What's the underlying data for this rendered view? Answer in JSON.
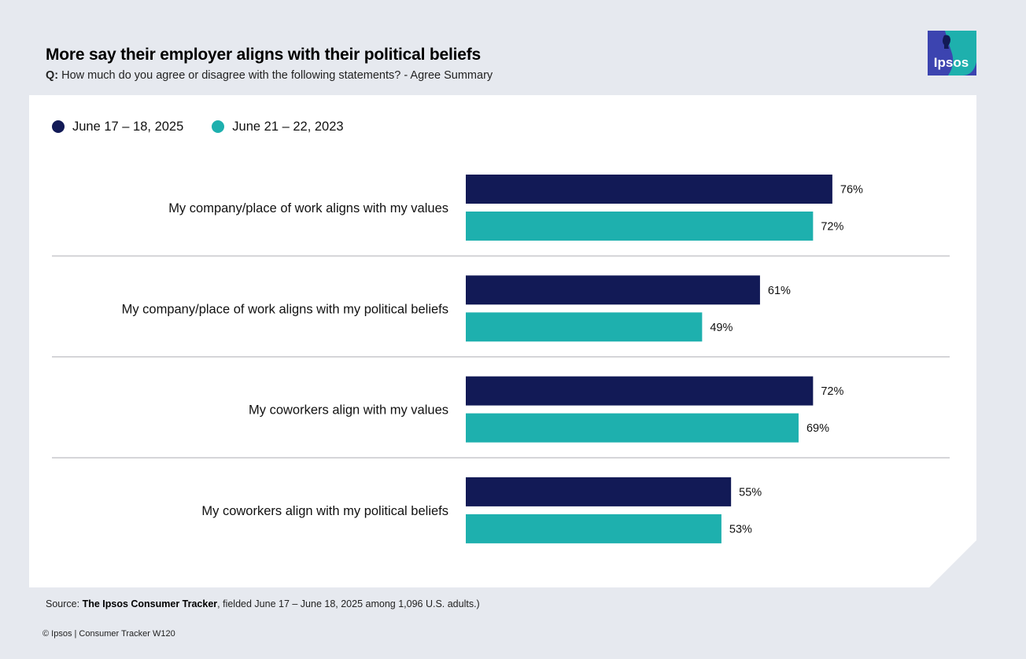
{
  "header": {
    "title": "More say their employer aligns with their political beliefs",
    "question_label": "Q:",
    "question_text": "How much do you agree or disagree with the following statements? - Agree Summary"
  },
  "logo": {
    "text": "Ipsos",
    "primary_color": "#3c44b0",
    "accent_color": "#1eb0ad"
  },
  "chart_data": {
    "type": "bar",
    "orientation": "horizontal",
    "title": "More say their employer aligns with their political beliefs",
    "categories": [
      "My company/place of work aligns with my values",
      "My company/place of work aligns with my political beliefs",
      "My coworkers align with my values",
      "My coworkers align with my political beliefs"
    ],
    "series": [
      {
        "name": "June 17 – 18, 2025",
        "color": "#121a56",
        "values": [
          76,
          61,
          72,
          55
        ],
        "labels": [
          "76%",
          "61%",
          "72%",
          "55%"
        ]
      },
      {
        "name": "June 21 – 22, 2023",
        "color": "#1eb0ae",
        "values": [
          72,
          49,
          69,
          53
        ],
        "labels": [
          "72%",
          "49%",
          "69%",
          "53%"
        ]
      }
    ],
    "xlim": [
      0,
      100
    ],
    "unit": "%",
    "legend_position": "top-left",
    "grid": false
  },
  "footer": {
    "source_prefix": "Source: ",
    "source_bold": "The Ipsos Consumer Tracker",
    "source_rest": ", fielded June 17 – June 18, 2025 among 1,096 U.S. adults.)",
    "copyright": "© Ipsos | Consumer Tracker W120"
  }
}
